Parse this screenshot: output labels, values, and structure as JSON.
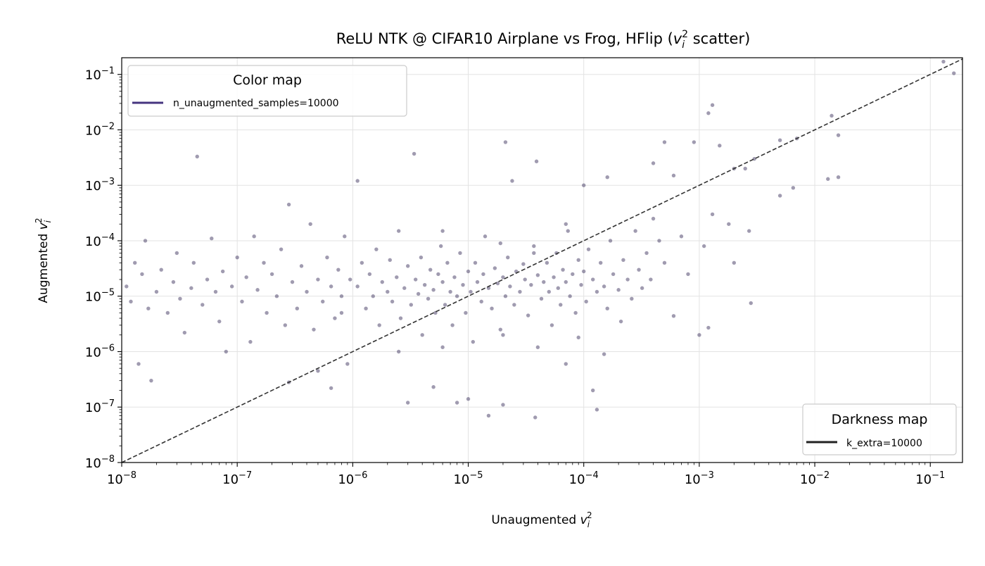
{
  "chart_data": {
    "type": "scatter",
    "title": {
      "prefix": "ReLU NTK @ CIFAR10 Airplane vs Frog, HFlip (",
      "math_base": "v",
      "math_sub": "i",
      "math_sup": "2",
      "suffix": " scatter)"
    },
    "xlabel": {
      "text": "Unaugmented ",
      "math_base": "v",
      "math_sub": "i",
      "math_sup": "2"
    },
    "ylabel": {
      "text": "Augmented ",
      "math_base": "v",
      "math_sub": "i",
      "math_sup": "2"
    },
    "x_scale": "log",
    "y_scale": "log",
    "xlim": [
      1e-08,
      0.19
    ],
    "ylim": [
      1e-08,
      0.2
    ],
    "grid": true,
    "x_ticks": [
      {
        "value": 1e-08,
        "base": "10",
        "exp": "−8"
      },
      {
        "value": 1e-07,
        "base": "10",
        "exp": "−7"
      },
      {
        "value": 1e-06,
        "base": "10",
        "exp": "−6"
      },
      {
        "value": 1e-05,
        "base": "10",
        "exp": "−5"
      },
      {
        "value": 0.0001,
        "base": "10",
        "exp": "−4"
      },
      {
        "value": 0.001,
        "base": "10",
        "exp": "−3"
      },
      {
        "value": 0.01,
        "base": "10",
        "exp": "−2"
      },
      {
        "value": 0.1,
        "base": "10",
        "exp": "−1"
      }
    ],
    "y_ticks": [
      {
        "value": 1e-08,
        "base": "10",
        "exp": "−8"
      },
      {
        "value": 1e-07,
        "base": "10",
        "exp": "−7"
      },
      {
        "value": 1e-06,
        "base": "10",
        "exp": "−6"
      },
      {
        "value": 1e-05,
        "base": "10",
        "exp": "−5"
      },
      {
        "value": 0.0001,
        "base": "10",
        "exp": "−4"
      },
      {
        "value": 0.001,
        "base": "10",
        "exp": "−3"
      },
      {
        "value": 0.01,
        "base": "10",
        "exp": "−2"
      },
      {
        "value": 0.1,
        "base": "10",
        "exp": "−1"
      }
    ],
    "reference_line": {
      "type": "y=x",
      "style": "dashed",
      "color": "#333333"
    },
    "point_color": "#2d2150",
    "legends": [
      {
        "title": "Color map",
        "label": "n_unaugmented_samples=10000",
        "color": "#45347f",
        "placement": "top-left"
      },
      {
        "title": "Darkness map",
        "label": "k_extra=10000",
        "color": "#222222",
        "placement": "bottom-right"
      }
    ],
    "points": [
      [
        1.1e-08,
        1.5e-05
      ],
      [
        1.3e-08,
        4e-05
      ],
      [
        1.2e-08,
        8e-06
      ],
      [
        1.5e-08,
        2.5e-05
      ],
      [
        1.7e-08,
        6e-06
      ],
      [
        1.6e-08,
        0.0001
      ],
      [
        2e-08,
        1.2e-05
      ],
      [
        2.2e-08,
        3e-05
      ],
      [
        2.5e-08,
        5e-06
      ],
      [
        2.8e-08,
        1.8e-05
      ],
      [
        3e-08,
        6e-05
      ],
      [
        3.2e-08,
        9e-06
      ],
      [
        1.4e-08,
        6e-07
      ],
      [
        1.8e-08,
        3e-07
      ],
      [
        3.5e-08,
        2.2e-06
      ],
      [
        4e-08,
        1.4e-05
      ],
      [
        4.5e-08,
        0.0033
      ],
      [
        4.2e-08,
        4e-05
      ],
      [
        5e-08,
        7e-06
      ],
      [
        5.5e-08,
        2e-05
      ],
      [
        6e-08,
        0.00011
      ],
      [
        6.5e-08,
        1.2e-05
      ],
      [
        7e-08,
        3.5e-06
      ],
      [
        7.5e-08,
        2.8e-05
      ],
      [
        8e-08,
        1e-06
      ],
      [
        9e-08,
        1.5e-05
      ],
      [
        1e-07,
        5e-05
      ],
      [
        1.1e-07,
        8e-06
      ],
      [
        1.2e-07,
        2.2e-05
      ],
      [
        1.3e-07,
        1.5e-06
      ],
      [
        1.4e-07,
        0.00012
      ],
      [
        1.5e-07,
        1.3e-05
      ],
      [
        1.7e-07,
        4e-05
      ],
      [
        1.8e-07,
        5e-06
      ],
      [
        2e-07,
        2.5e-05
      ],
      [
        2.2e-07,
        1e-05
      ],
      [
        2.4e-07,
        7e-05
      ],
      [
        2.6e-07,
        3e-06
      ],
      [
        2.8e-07,
        0.00045
      ],
      [
        3e-07,
        1.8e-05
      ],
      [
        3.3e-07,
        6e-06
      ],
      [
        3.6e-07,
        3.5e-05
      ],
      [
        4e-07,
        1.2e-05
      ],
      [
        4.3e-07,
        0.0002
      ],
      [
        4.6e-07,
        2.5e-06
      ],
      [
        5e-07,
        2e-05
      ],
      [
        5.5e-07,
        8e-06
      ],
      [
        6e-07,
        5e-05
      ],
      [
        6.5e-07,
        1.5e-05
      ],
      [
        7e-07,
        4e-06
      ],
      [
        7.5e-07,
        3e-05
      ],
      [
        8e-07,
        1e-05
      ],
      [
        8.5e-07,
        0.00012
      ],
      [
        9e-07,
        6e-07
      ],
      [
        9.5e-07,
        2e-05
      ],
      [
        1.1e-06,
        0.0012
      ],
      [
        2.8e-07,
        2.8e-07
      ],
      [
        5e-07,
        4.5e-07
      ],
      [
        6.5e-07,
        2.2e-07
      ],
      [
        8e-07,
        5e-06
      ],
      [
        1.1e-06,
        1.5e-05
      ],
      [
        1.2e-06,
        4e-05
      ],
      [
        1.3e-06,
        6e-06
      ],
      [
        1.4e-06,
        2.5e-05
      ],
      [
        1.5e-06,
        1e-05
      ],
      [
        1.6e-06,
        7e-05
      ],
      [
        1.7e-06,
        3e-06
      ],
      [
        1.8e-06,
        1.8e-05
      ],
      [
        2e-06,
        1.2e-05
      ],
      [
        2.1e-06,
        4.5e-05
      ],
      [
        2.2e-06,
        8e-06
      ],
      [
        2.4e-06,
        2.2e-05
      ],
      [
        2.5e-06,
        0.00015
      ],
      [
        2.6e-06,
        4e-06
      ],
      [
        2.8e-06,
        1.4e-05
      ],
      [
        3e-06,
        3.5e-05
      ],
      [
        3.2e-06,
        7e-06
      ],
      [
        3.4e-06,
        0.0037
      ],
      [
        3.5e-06,
        2e-05
      ],
      [
        3.7e-06,
        1.1e-05
      ],
      [
        3.9e-06,
        5e-05
      ],
      [
        4e-06,
        2e-06
      ],
      [
        4.2e-06,
        1.6e-05
      ],
      [
        4.5e-06,
        9e-06
      ],
      [
        4.7e-06,
        3e-05
      ],
      [
        5e-06,
        1.3e-05
      ],
      [
        5.2e-06,
        5e-06
      ],
      [
        5.5e-06,
        2.5e-05
      ],
      [
        5.8e-06,
        8e-05
      ],
      [
        6e-06,
        1.8e-05
      ],
      [
        6.3e-06,
        7e-06
      ],
      [
        6.6e-06,
        4e-05
      ],
      [
        7e-06,
        1.2e-05
      ],
      [
        7.3e-06,
        3e-06
      ],
      [
        7.6e-06,
        2.2e-05
      ],
      [
        8e-06,
        1e-05
      ],
      [
        8.5e-06,
        6e-05
      ],
      [
        9e-06,
        1.6e-05
      ],
      [
        9.5e-06,
        5e-06
      ],
      [
        1e-05,
        2.8e-05
      ],
      [
        1e-05,
        1.4e-07
      ],
      [
        1.05e-05,
        1.2e-05
      ],
      [
        1.1e-05,
        1.5e-06
      ],
      [
        1.15e-05,
        4e-05
      ],
      [
        1.2e-05,
        1.8e-05
      ],
      [
        1.3e-05,
        8e-06
      ],
      [
        1.35e-05,
        2.5e-05
      ],
      [
        1.4e-05,
        0.00012
      ],
      [
        1.5e-05,
        1.4e-05
      ],
      [
        1.5e-05,
        7e-08
      ],
      [
        1.6e-05,
        6e-06
      ],
      [
        1.7e-05,
        3.2e-05
      ],
      [
        1.8e-05,
        1.7e-05
      ],
      [
        1.9e-05,
        2.5e-06
      ],
      [
        2e-05,
        2.2e-05
      ],
      [
        2.1e-05,
        1e-05
      ],
      [
        2.2e-05,
        5e-05
      ],
      [
        2.3e-05,
        1.5e-05
      ],
      [
        2.4e-05,
        0.0012
      ],
      [
        2.5e-05,
        7e-06
      ],
      [
        2.6e-05,
        2.8e-05
      ],
      [
        2.8e-05,
        1.2e-05
      ],
      [
        3e-05,
        3.8e-05
      ],
      [
        3.1e-05,
        2e-05
      ],
      [
        3.3e-05,
        4.5e-06
      ],
      [
        3.5e-05,
        1.6e-05
      ],
      [
        3.7e-05,
        8e-05
      ],
      [
        3.8e-05,
        6.5e-08
      ],
      [
        3.9e-05,
        0.0027
      ],
      [
        4e-05,
        2.4e-05
      ],
      [
        4.3e-05,
        9e-06
      ],
      [
        4.5e-05,
        1.8e-05
      ],
      [
        4.8e-05,
        4e-05
      ],
      [
        5e-05,
        1.2e-05
      ],
      [
        5.3e-05,
        3e-06
      ],
      [
        5.5e-05,
        2.2e-05
      ],
      [
        5.8e-05,
        6e-05
      ],
      [
        6e-05,
        1.4e-05
      ],
      [
        6.3e-05,
        7e-06
      ],
      [
        6.6e-05,
        3e-05
      ],
      [
        7e-05,
        1.8e-05
      ],
      [
        7.3e-05,
        0.00015
      ],
      [
        7.6e-05,
        1e-05
      ],
      [
        8e-05,
        2.5e-05
      ],
      [
        8.5e-05,
        5e-06
      ],
      [
        9e-05,
        4.5e-05
      ],
      [
        9.5e-05,
        1.6e-05
      ],
      [
        0.0001,
        2.8e-05
      ],
      [
        0.000105,
        8e-06
      ],
      [
        0.00011,
        7e-05
      ],
      [
        0.00012,
        2e-05
      ],
      [
        0.00012,
        2e-07
      ],
      [
        0.00013,
        1.2e-05
      ],
      [
        0.00013,
        9e-08
      ],
      [
        0.00014,
        4e-05
      ],
      [
        0.00015,
        1.5e-05
      ],
      [
        0.00016,
        6e-06
      ],
      [
        0.00017,
        0.0001
      ],
      [
        0.00018,
        2.5e-05
      ],
      [
        0.0002,
        1.3e-05
      ],
      [
        0.00021,
        3.5e-06
      ],
      [
        0.00022,
        4.5e-05
      ],
      [
        0.00024,
        2e-05
      ],
      [
        0.00026,
        9e-06
      ],
      [
        0.00028,
        0.00015
      ],
      [
        0.0003,
        3e-05
      ],
      [
        0.00032,
        1.4e-05
      ],
      [
        0.00035,
        6e-05
      ],
      [
        0.00038,
        2e-05
      ],
      [
        0.0004,
        0.00025
      ],
      [
        0.00045,
        0.0001
      ],
      [
        0.0005,
        4e-05
      ],
      [
        0.0006,
        4.4e-06
      ],
      [
        0.0007,
        0.00012
      ],
      [
        0.0008,
        2.5e-05
      ],
      [
        0.001,
        2e-06
      ],
      [
        0.0012,
        2.7e-06
      ],
      [
        0.0011,
        8e-05
      ],
      [
        0.0013,
        0.0003
      ],
      [
        0.0013,
        0.028
      ],
      [
        0.0012,
        0.02
      ],
      [
        0.0009,
        0.006
      ],
      [
        0.0005,
        0.006
      ],
      [
        0.0004,
        0.0025
      ],
      [
        0.0006,
        0.0015
      ],
      [
        0.0018,
        0.0002
      ],
      [
        0.0027,
        0.00015
      ],
      [
        0.0028,
        7.5e-06
      ],
      [
        0.002,
        4e-05
      ],
      [
        0.0015,
        0.0052
      ],
      [
        0.002,
        0.002
      ],
      [
        0.0025,
        0.002
      ],
      [
        0.003,
        0.003
      ],
      [
        0.005,
        0.0065
      ],
      [
        0.007,
        0.007
      ],
      [
        0.005,
        0.00065
      ],
      [
        0.0065,
        0.0009
      ],
      [
        0.013,
        0.0013
      ],
      [
        0.016,
        0.0014
      ],
      [
        0.014,
        0.018
      ],
      [
        0.016,
        0.008
      ],
      [
        0.13,
        0.17
      ],
      [
        0.16,
        0.105
      ],
      [
        2.1e-05,
        0.006
      ],
      [
        8e-06,
        1.2e-07
      ],
      [
        2e-05,
        1.1e-07
      ],
      [
        5e-06,
        2.3e-07
      ],
      [
        3e-06,
        1.2e-07
      ],
      [
        0.0001,
        0.001
      ],
      [
        0.00016,
        0.0014
      ],
      [
        7e-05,
        0.0002
      ],
      [
        3.7e-05,
        6e-05
      ],
      [
        1.9e-05,
        9e-05
      ],
      [
        6e-06,
        0.00015
      ],
      [
        9e-05,
        1.8e-06
      ],
      [
        4e-05,
        1.2e-06
      ],
      [
        2e-05,
        2e-06
      ],
      [
        6e-06,
        1.2e-06
      ],
      [
        2.5e-06,
        1e-06
      ],
      [
        0.00015,
        9e-07
      ],
      [
        7e-05,
        6e-07
      ]
    ]
  }
}
